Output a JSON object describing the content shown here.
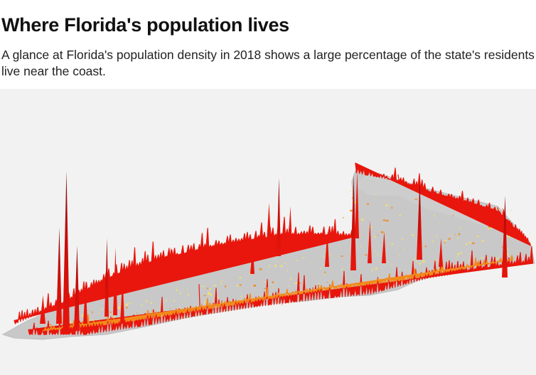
{
  "header": {
    "title": "Where Florida's population lives",
    "subtitle": "A glance at Florida's population density in 2018 shows a large percentage of the state's residents live near the coast."
  },
  "map": {
    "subject": "Florida 3D population density",
    "year": "2018",
    "colors": {
      "land": "#c8c8c8",
      "background": "#f2f2f2",
      "low": "#f5e26a",
      "mid": "#f28a1a",
      "high": "#e8160c",
      "peak": "#8a0a0a"
    }
  }
}
